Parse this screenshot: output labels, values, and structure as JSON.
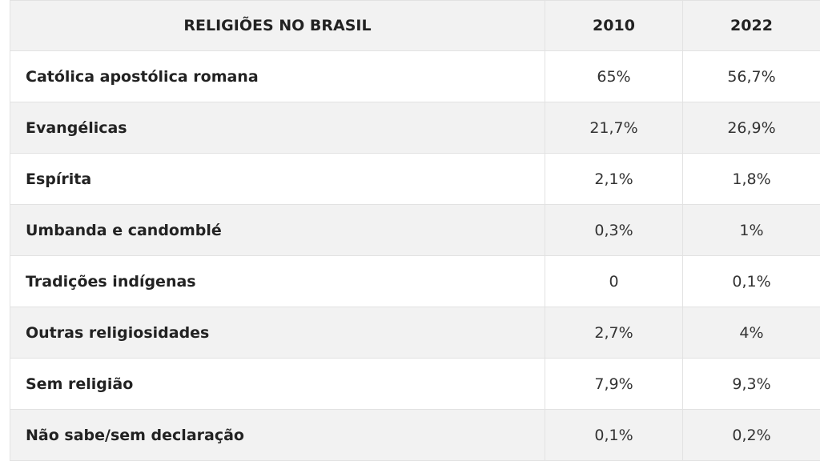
{
  "table": {
    "header": [
      "RELIGIÕES NO BRASIL",
      "2010",
      "2022"
    ],
    "rows": [
      [
        "Católica apostólica romana",
        "65%",
        "56,7%"
      ],
      [
        "Evangélicas",
        "21,7%",
        "26,9%"
      ],
      [
        "Espírita",
        "2,1%",
        "1,8%"
      ],
      [
        "Umbanda e candomblé",
        "0,3%",
        "1%"
      ],
      [
        "Tradições indígenas",
        "0",
        "0,1%"
      ],
      [
        "Outras religiosidades",
        "2,7%",
        "4%"
      ],
      [
        "Sem religião",
        "7,9%",
        "9,3%"
      ],
      [
        "Não sabe/sem declaração",
        "0,1%",
        "0,2%"
      ]
    ]
  }
}
